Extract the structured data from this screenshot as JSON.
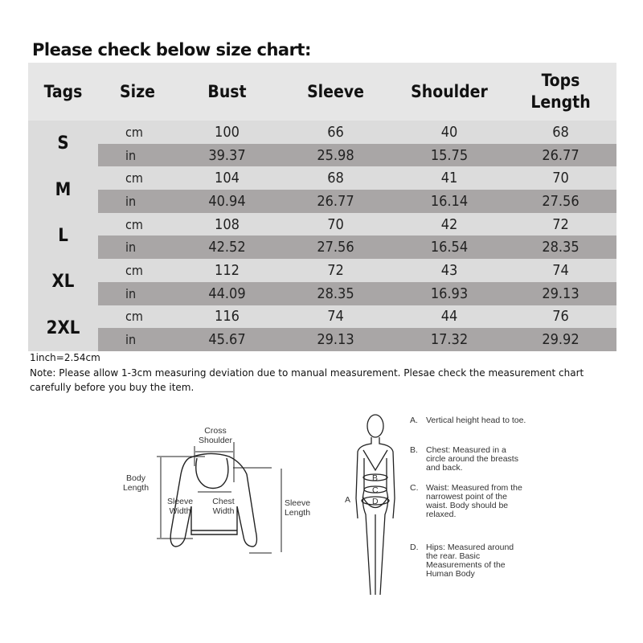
{
  "title": "Please check below size chart:",
  "table": {
    "headers": [
      "Tags",
      "Size",
      "Bust",
      "Sleeve",
      "Shoulder",
      "Tops Length"
    ],
    "rows": [
      {
        "tag": "S",
        "cm": [
          "cm",
          "100",
          "66",
          "40",
          "68"
        ],
        "in": [
          "in",
          "39.37",
          "25.98",
          "15.75",
          "26.77"
        ]
      },
      {
        "tag": "M",
        "cm": [
          "cm",
          "104",
          "68",
          "41",
          "70"
        ],
        "in": [
          "in",
          "40.94",
          "26.77",
          "16.14",
          "27.56"
        ]
      },
      {
        "tag": "L",
        "cm": [
          "cm",
          "108",
          "70",
          "42",
          "72"
        ],
        "in": [
          "in",
          "42.52",
          "27.56",
          "16.54",
          "28.35"
        ]
      },
      {
        "tag": "XL",
        "cm": [
          "cm",
          "112",
          "72",
          "43",
          "74"
        ],
        "in": [
          "in",
          "44.09",
          "28.35",
          "16.93",
          "29.13"
        ]
      },
      {
        "tag": "2XL",
        "cm": [
          "cm",
          "116",
          "74",
          "44",
          "76"
        ],
        "in": [
          "in",
          "45.67",
          "29.13",
          "17.32",
          "29.92"
        ]
      }
    ]
  },
  "conversion": "1inch=2.54cm",
  "note": "Note: Please allow 1-3cm measuring deviation due to manual measurement. Plesae check the measurement chart carefully before you buy the item.",
  "garment_diagram": {
    "cross_shoulder": "Cross Shoulder",
    "body_length": "Body Length",
    "sleeve_width": "Sleeve Width",
    "chest_width": "Chest Width",
    "sleeve_length": "Sleeve Length"
  },
  "body_diagram": {
    "markers": [
      "A",
      "B",
      "C",
      "D"
    ],
    "items": [
      {
        "letter": "A.",
        "text": "Vertical height head to toe."
      },
      {
        "letter": "B.",
        "text": "Chest: Measured in a circle around the breasts and back."
      },
      {
        "letter": "C.",
        "text": "Waist: Measured from the narrowest point of the waist. Body should be relaxed."
      },
      {
        "letter": "D.",
        "text": "Hips: Measured around the rear. Basic Measurements of the Human Body"
      }
    ]
  }
}
